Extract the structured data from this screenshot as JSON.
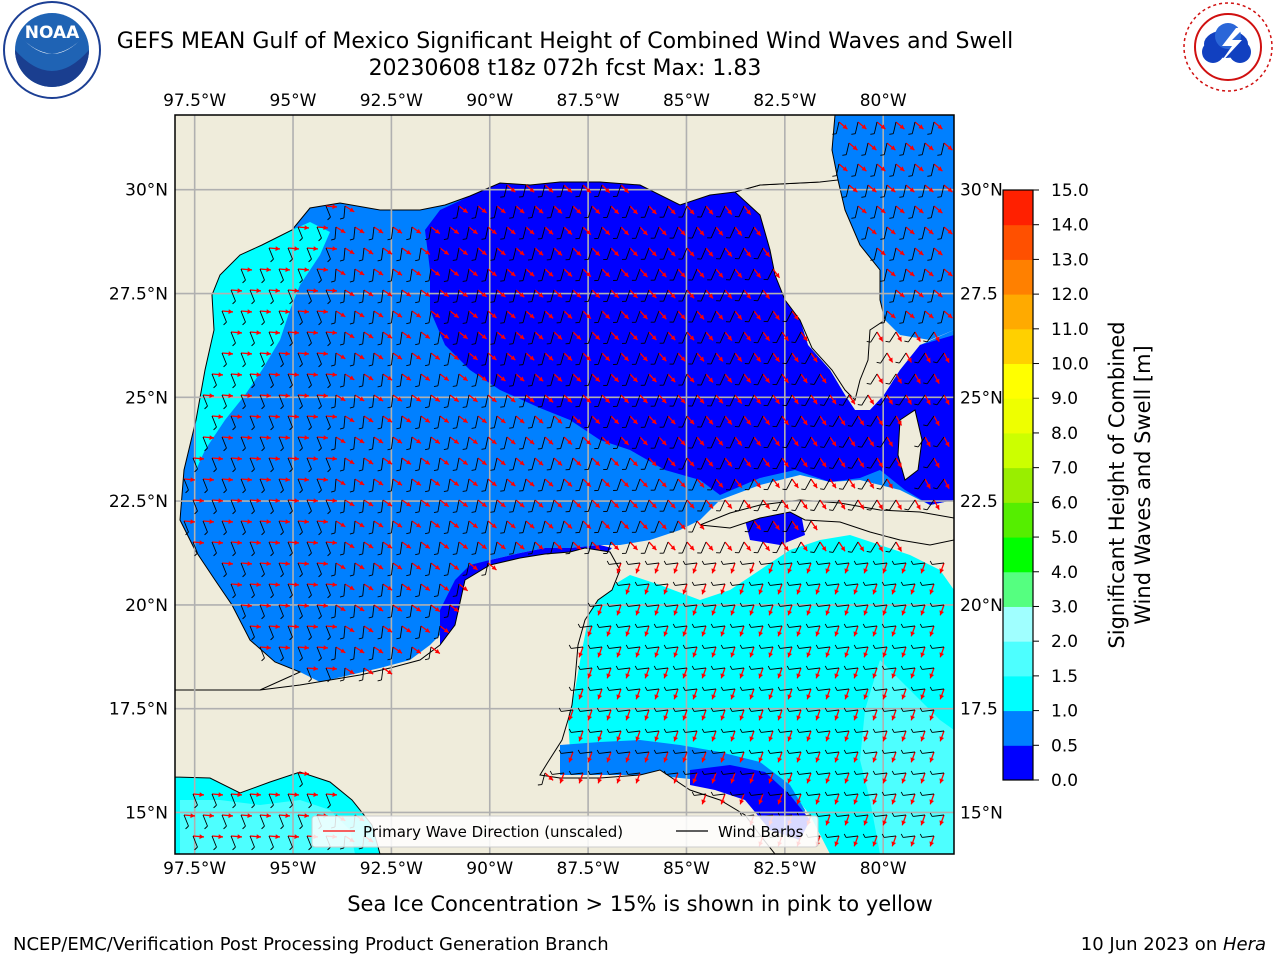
{
  "title": {
    "line1": "GEFS MEAN Gulf of Mexico Significant Height of Combined Wind Waves and Swell",
    "line2": "20230608 t18z 072h fcst   Max: 1.83"
  },
  "logos": {
    "left": {
      "icon": "noaa-logo-icon",
      "text": "NOAA",
      "ring_text": "NATIONAL OCEANIC AND ATMOSPHERIC ADMINISTRATION · U.S. DEPARTMENT OF COMMERCE"
    },
    "right": {
      "icon": "nws-logo-icon",
      "ring_text": "NATIONAL WEATHER SERVICE"
    }
  },
  "map": {
    "lon_ticks": [
      "97.5°W",
      "95°W",
      "92.5°W",
      "90°W",
      "87.5°W",
      "85°W",
      "82.5°W",
      "80°W"
    ],
    "lon_values": [
      -97.5,
      -95,
      -92.5,
      -90,
      -87.5,
      -85,
      -82.5,
      -80
    ],
    "lat_ticks_left": [
      "30°N",
      "27.5°N",
      "25°N",
      "22.5°N",
      "20°N",
      "17.5°N",
      "15°N"
    ],
    "lat_ticks_right": [
      "30°N",
      "27.5",
      "25°N",
      "22.5",
      "20°N",
      "17.5",
      "15°N"
    ],
    "lat_values": [
      30,
      27.5,
      25,
      22.5,
      20,
      17.5,
      15
    ],
    "extent": {
      "lon_min": -98,
      "lon_max": -78.2,
      "lat_min": 14,
      "lat_max": 31.8
    },
    "colors": {
      "land": "#efecdb",
      "arrow": "#ff0000",
      "barb": "#000000",
      "grid": "#b0b0b0"
    }
  },
  "legend": {
    "items": [
      {
        "label": "Primary Wave Direction (unscaled)",
        "color": "#ff0000"
      },
      {
        "label": "Wind Barbs",
        "color": "#000000"
      }
    ]
  },
  "colorbar": {
    "title_line1": "Significant Height of Combined",
    "title_line2": "Wind Waves and Swell [m]",
    "levels": [
      "0.0",
      "0.5",
      "1.0",
      "1.5",
      "2.0",
      "3.0",
      "4.0",
      "5.0",
      "6.0",
      "7.0",
      "8.0",
      "9.0",
      "10.0",
      "11.0",
      "12.0",
      "13.0",
      "14.0",
      "15.0"
    ],
    "colors": [
      "#0000ff",
      "#0080ff",
      "#00ffff",
      "#4dffff",
      "#a0ffff",
      "#55ff80",
      "#00ff00",
      "#55ee00",
      "#99ee00",
      "#ccff00",
      "#eeff00",
      "#ffff00",
      "#ffd000",
      "#ffaa00",
      "#ff8000",
      "#ff5000",
      "#ff2000"
    ]
  },
  "chart_data": {
    "type": "heatmap",
    "variable": "Significant Height of Combined Wind Waves and Swell",
    "units": "m",
    "max": 1.83,
    "regions": [
      {
        "area": "Northeastern Gulf of Mexico",
        "range_m": [
          0.0,
          0.5
        ]
      },
      {
        "area": "Central and western Gulf of Mexico",
        "range_m": [
          0.5,
          1.0
        ]
      },
      {
        "area": "Texas coast",
        "range_m": [
          1.0,
          1.5
        ]
      },
      {
        "area": "Bay of Campeche",
        "range_m": [
          0.0,
          1.0
        ]
      },
      {
        "area": "Northwestern Caribbean Sea",
        "range_m": [
          1.0,
          2.0
        ]
      },
      {
        "area": "Atlantic east of Florida",
        "range_m": [
          0.5,
          1.0
        ]
      }
    ]
  },
  "note": "Sea Ice Concentration > 15% is shown in pink to yellow",
  "footer": {
    "left": "NCEP/EMC/Verification Post Processing Product Generation Branch",
    "right_date": "10 Jun 2023 on ",
    "right_host": "Hera"
  }
}
